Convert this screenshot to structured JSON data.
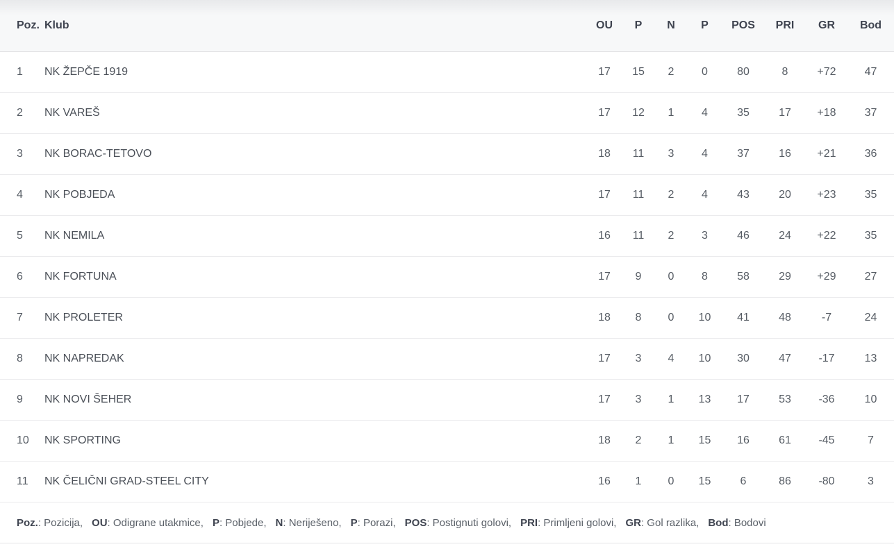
{
  "table": {
    "columns": {
      "poz": {
        "label": "Poz."
      },
      "klub": {
        "label": "Klub"
      },
      "ou": {
        "label": "OU"
      },
      "p1": {
        "label": "P"
      },
      "n": {
        "label": "N"
      },
      "p2": {
        "label": "P"
      },
      "pos": {
        "label": "POS"
      },
      "pri": {
        "label": "PRI"
      },
      "gr": {
        "label": "GR"
      },
      "bod": {
        "label": "Bod"
      }
    },
    "rows": [
      {
        "poz": "1",
        "klub": "NK ŽEPČE 1919",
        "ou": "17",
        "p1": "15",
        "n": "2",
        "p2": "0",
        "pos": "80",
        "pri": "8",
        "gr": "+72",
        "bod": "47"
      },
      {
        "poz": "2",
        "klub": "NK VAREŠ",
        "ou": "17",
        "p1": "12",
        "n": "1",
        "p2": "4",
        "pos": "35",
        "pri": "17",
        "gr": "+18",
        "bod": "37"
      },
      {
        "poz": "3",
        "klub": "NK BORAC-TETOVO",
        "ou": "18",
        "p1": "11",
        "n": "3",
        "p2": "4",
        "pos": "37",
        "pri": "16",
        "gr": "+21",
        "bod": "36"
      },
      {
        "poz": "4",
        "klub": "NK POBJEDA",
        "ou": "17",
        "p1": "11",
        "n": "2",
        "p2": "4",
        "pos": "43",
        "pri": "20",
        "gr": "+23",
        "bod": "35"
      },
      {
        "poz": "5",
        "klub": "NK NEMILA",
        "ou": "16",
        "p1": "11",
        "n": "2",
        "p2": "3",
        "pos": "46",
        "pri": "24",
        "gr": "+22",
        "bod": "35"
      },
      {
        "poz": "6",
        "klub": "NK FORTUNA",
        "ou": "17",
        "p1": "9",
        "n": "0",
        "p2": "8",
        "pos": "58",
        "pri": "29",
        "gr": "+29",
        "bod": "27"
      },
      {
        "poz": "7",
        "klub": "NK PROLETER",
        "ou": "18",
        "p1": "8",
        "n": "0",
        "p2": "10",
        "pos": "41",
        "pri": "48",
        "gr": "-7",
        "bod": "24"
      },
      {
        "poz": "8",
        "klub": "NK NAPREDAK",
        "ou": "17",
        "p1": "3",
        "n": "4",
        "p2": "10",
        "pos": "30",
        "pri": "47",
        "gr": "-17",
        "bod": "13"
      },
      {
        "poz": "9",
        "klub": "NK NOVI ŠEHER",
        "ou": "17",
        "p1": "3",
        "n": "1",
        "p2": "13",
        "pos": "17",
        "pri": "53",
        "gr": "-36",
        "bod": "10"
      },
      {
        "poz": "10",
        "klub": "NK SPORTING",
        "ou": "18",
        "p1": "2",
        "n": "1",
        "p2": "15",
        "pos": "16",
        "pri": "61",
        "gr": "-45",
        "bod": "7"
      },
      {
        "poz": "11",
        "klub": "NK ČELIČNI GRAD-STEEL CITY",
        "ou": "16",
        "p1": "1",
        "n": "0",
        "p2": "15",
        "pos": "6",
        "pri": "86",
        "gr": "-80",
        "bod": "3"
      }
    ]
  },
  "legend": {
    "items": [
      {
        "term": "Poz.",
        "desc": "Pozicija"
      },
      {
        "term": "OU",
        "desc": "Odigrane utakmice"
      },
      {
        "term": "P",
        "desc": "Pobjede"
      },
      {
        "term": "N",
        "desc": "Neriješeno"
      },
      {
        "term": "P",
        "desc": "Porazi"
      },
      {
        "term": "POS",
        "desc": "Postignuti golovi"
      },
      {
        "term": "PRI",
        "desc": "Primljeni golovi"
      },
      {
        "term": "GR",
        "desc": "Gol razlika"
      },
      {
        "term": "Bod",
        "desc": "Bodovi"
      }
    ]
  }
}
